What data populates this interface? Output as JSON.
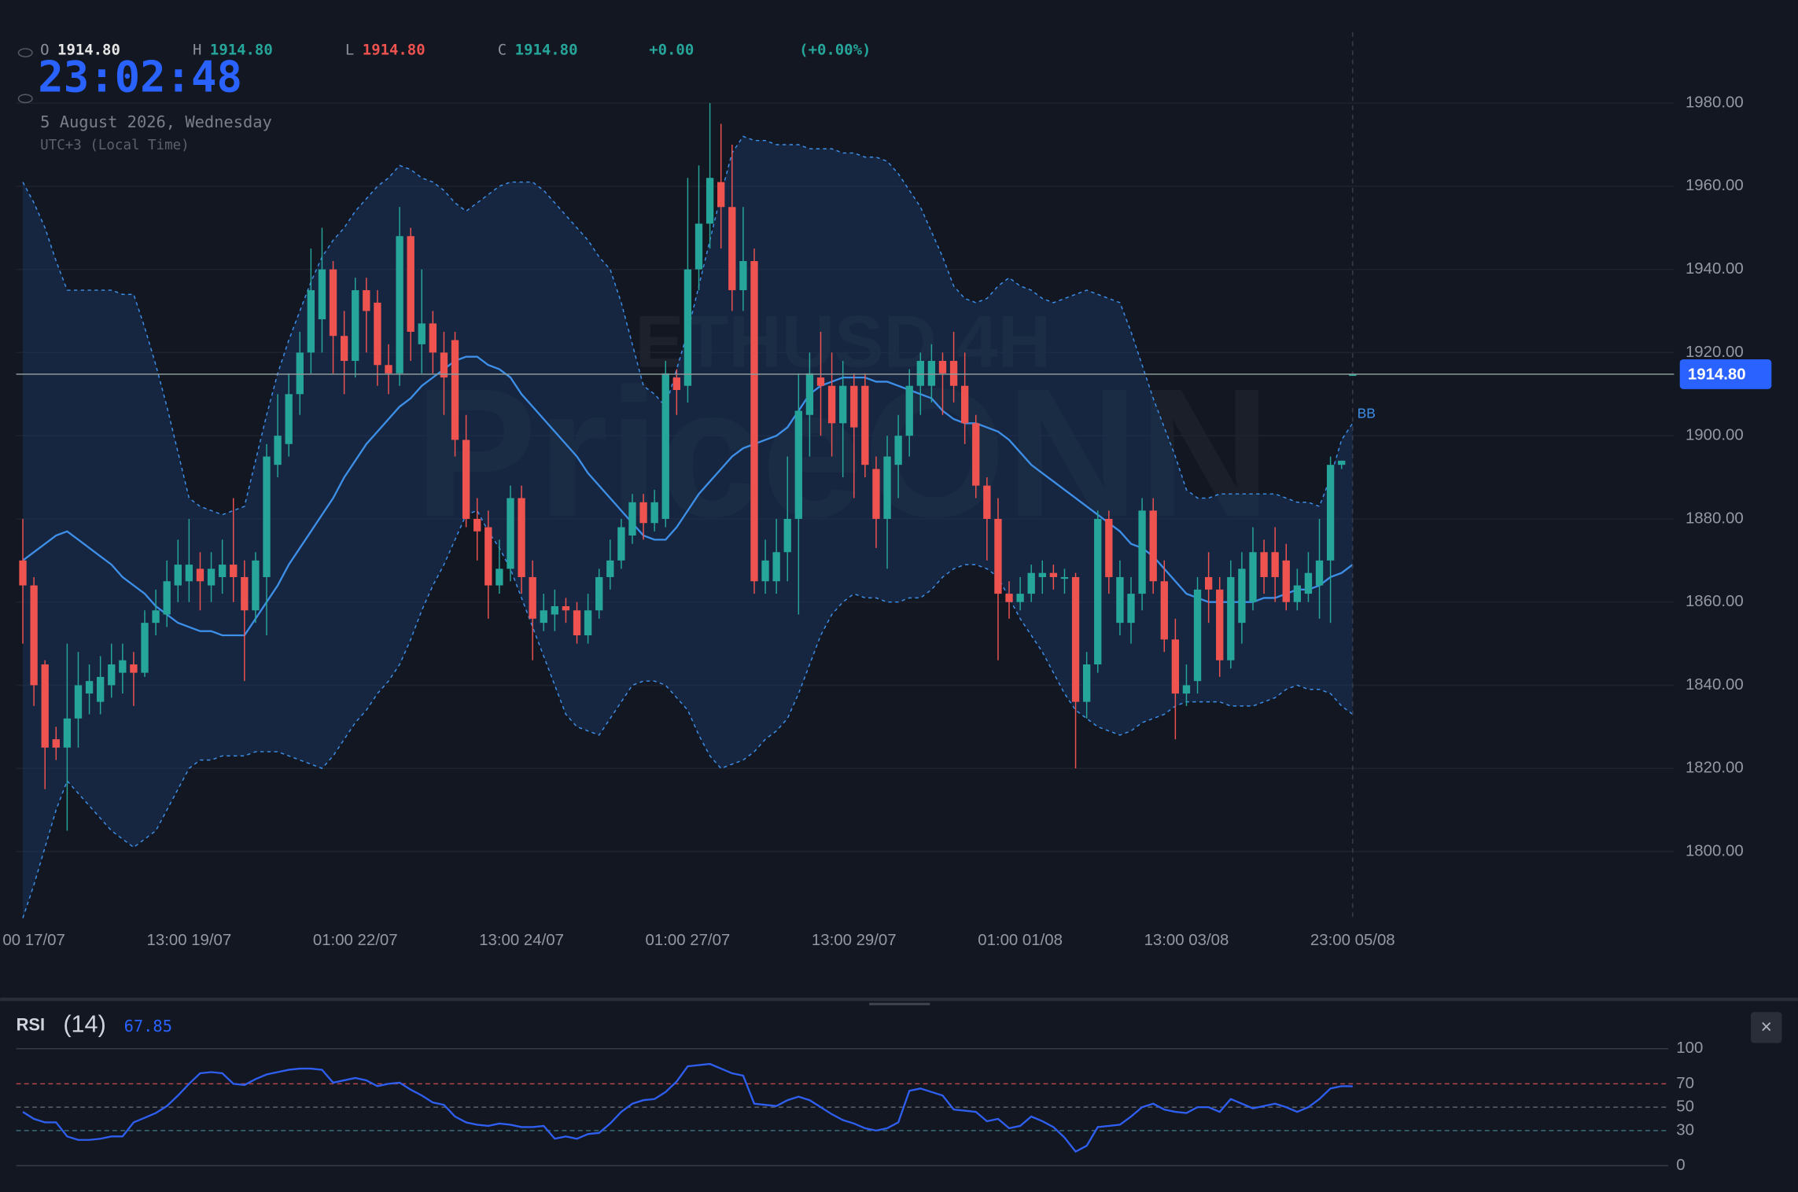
{
  "header": {
    "ohlc": [
      {
        "key": "O",
        "value": "1914.80"
      },
      {
        "key": "H",
        "value": "1914.80"
      },
      {
        "key": "L",
        "value": "1914.80"
      },
      {
        "key": "C",
        "value": "1914.80"
      }
    ],
    "change": "+0.00",
    "change_pct": "(+0.00%)",
    "clock": "23:02:48",
    "date": "5 August 2026, Wednesday",
    "timezone": "UTC+3 (Local Time)"
  },
  "chart_data": [
    {
      "type": "candlestick",
      "watermark": [
        "ETHUSD 4H",
        "PriceONN"
      ],
      "up_color": "#26a69a",
      "down_color": "#ef5350",
      "open": [
        1870,
        1864,
        1845,
        1827,
        1825,
        1832,
        1838,
        1836,
        1840,
        1843,
        1845,
        1843,
        1855,
        1857,
        1864,
        1865,
        1868,
        1864,
        1866,
        1869,
        1866,
        1858,
        1866,
        1893,
        1898,
        1910,
        1920,
        1928,
        1940,
        1924,
        1918,
        1935,
        1932,
        1917,
        1915,
        1948,
        1922,
        1927,
        1920,
        1923,
        1899,
        1880,
        1878,
        1864,
        1868,
        1885,
        1866,
        1855,
        1857,
        1859,
        1858,
        1852,
        1858,
        1866,
        1870,
        1876,
        1884,
        1879,
        1880,
        1914,
        1912,
        1940,
        1951,
        1961,
        1955,
        1935,
        1942,
        1865,
        1865,
        1872,
        1880,
        1905,
        1914,
        1912,
        1903,
        1912,
        1912,
        1892,
        1880,
        1893,
        1900,
        1912,
        1912,
        1918,
        1918,
        1912,
        1903,
        1888,
        1880,
        1862,
        1860,
        1862,
        1866,
        1867,
        1866,
        1866,
        1836,
        1845,
        1880,
        1855,
        1855,
        1862,
        1882,
        1865,
        1851,
        1838,
        1841,
        1866,
        1863,
        1846,
        1855,
        1860,
        1872,
        1872,
        1870,
        1860,
        1862,
        1864,
        1870,
        1893,
        1914.8
      ],
      "high": [
        1880,
        1866,
        1846,
        1830,
        1850,
        1848,
        1845,
        1847,
        1850,
        1850,
        1848,
        1858,
        1863,
        1870,
        1875,
        1880,
        1872,
        1872,
        1875,
        1885,
        1870,
        1872,
        1898,
        1910,
        1915,
        1925,
        1945,
        1950,
        1942,
        1930,
        1938,
        1938,
        1935,
        1922,
        1955,
        1950,
        1940,
        1930,
        1925,
        1925,
        1905,
        1885,
        1882,
        1875,
        1888,
        1888,
        1870,
        1862,
        1863,
        1861,
        1860,
        1862,
        1868,
        1875,
        1880,
        1886,
        1886,
        1887,
        1918,
        1916,
        1962,
        1965,
        1980,
        1975,
        1970,
        1955,
        1945,
        1875,
        1880,
        1895,
        1915,
        1920,
        1925,
        1920,
        1918,
        1915,
        1915,
        1895,
        1900,
        1905,
        1916,
        1920,
        1922,
        1920,
        1925,
        1920,
        1905,
        1890,
        1885,
        1865,
        1866,
        1869,
        1870,
        1869,
        1868,
        1867,
        1848,
        1882,
        1882,
        1870,
        1866,
        1885,
        1885,
        1870,
        1856,
        1845,
        1866,
        1872,
        1866,
        1870,
        1872,
        1878,
        1875,
        1878,
        1874,
        1868,
        1872,
        1880,
        1895,
        1894,
        1914.8
      ],
      "low": [
        1850,
        1835,
        1815,
        1822,
        1805,
        1825,
        1833,
        1833,
        1837,
        1838,
        1835,
        1842,
        1852,
        1854,
        1860,
        1860,
        1858,
        1860,
        1862,
        1860,
        1841,
        1855,
        1852,
        1890,
        1895,
        1905,
        1915,
        1920,
        1915,
        1910,
        1914,
        1920,
        1912,
        1910,
        1912,
        1918,
        1915,
        1915,
        1905,
        1895,
        1878,
        1870,
        1856,
        1862,
        1865,
        1862,
        1846,
        1853,
        1853,
        1855,
        1850,
        1850,
        1856,
        1863,
        1868,
        1874,
        1875,
        1877,
        1878,
        1905,
        1908,
        1935,
        1945,
        1945,
        1930,
        1930,
        1862,
        1862,
        1862,
        1865,
        1857,
        1895,
        1900,
        1895,
        1890,
        1885,
        1890,
        1873,
        1868,
        1885,
        1895,
        1905,
        1908,
        1905,
        1908,
        1898,
        1885,
        1870,
        1846,
        1856,
        1858,
        1860,
        1862,
        1863,
        1862,
        1820,
        1832,
        1843,
        1862,
        1852,
        1850,
        1858,
        1862,
        1848,
        1827,
        1835,
        1838,
        1855,
        1842,
        1844,
        1850,
        1858,
        1862,
        1860,
        1858,
        1858,
        1860,
        1856,
        1855,
        1892,
        1914.8
      ],
      "close": [
        1864,
        1840,
        1825,
        1825,
        1832,
        1840,
        1841,
        1842,
        1845,
        1846,
        1843,
        1855,
        1858,
        1865,
        1869,
        1869,
        1865,
        1868,
        1869,
        1866,
        1858,
        1870,
        1895,
        1900,
        1910,
        1920,
        1935,
        1940,
        1924,
        1918,
        1935,
        1930,
        1917,
        1915,
        1948,
        1925,
        1927,
        1920,
        1914,
        1899,
        1880,
        1877,
        1864,
        1868,
        1885,
        1866,
        1856,
        1858,
        1859,
        1858,
        1852,
        1858,
        1866,
        1870,
        1878,
        1884,
        1879,
        1884,
        1915,
        1911,
        1940,
        1951,
        1962,
        1955,
        1935,
        1942,
        1865,
        1870,
        1872,
        1880,
        1906,
        1915,
        1912,
        1903,
        1912,
        1902,
        1893,
        1880,
        1895,
        1900,
        1912,
        1918,
        1918,
        1915,
        1912,
        1903,
        1888,
        1880,
        1862,
        1860,
        1862,
        1867,
        1867,
        1866,
        1866,
        1836,
        1845,
        1880,
        1866,
        1866,
        1862,
        1882,
        1865,
        1851,
        1838,
        1840,
        1863,
        1863,
        1846,
        1866,
        1868,
        1872,
        1866,
        1866,
        1860,
        1864,
        1867,
        1870,
        1893,
        1894,
        1914.8
      ],
      "bollinger": {
        "name": "BB",
        "color": "#3d8fe8",
        "fill": "#1a3a66",
        "upper": [
          1961,
          1956,
          1950,
          1942,
          1935,
          1935,
          1935,
          1935,
          1935,
          1934,
          1934,
          1926,
          1917,
          1907,
          1896,
          1885,
          1883,
          1882,
          1881,
          1882,
          1883,
          1894,
          1905,
          1915,
          1923,
          1930,
          1937,
          1943,
          1947,
          1950,
          1954,
          1957,
          1960,
          1962,
          1965,
          1964,
          1962,
          1961,
          1959,
          1956,
          1954,
          1956,
          1958,
          1960,
          1961,
          1961,
          1961,
          1959,
          1956,
          1953,
          1950,
          1947,
          1943,
          1940,
          1932,
          1922,
          1912,
          1910,
          1907,
          1916,
          1925,
          1936,
          1947,
          1958,
          1968,
          1972,
          1971,
          1971,
          1970,
          1970,
          1970,
          1969,
          1969,
          1969,
          1968,
          1968,
          1967,
          1967,
          1966,
          1963,
          1959,
          1955,
          1949,
          1943,
          1936,
          1933,
          1932,
          1933,
          1936,
          1938,
          1936,
          1935,
          1933,
          1932,
          1933,
          1934,
          1935,
          1934,
          1933,
          1932,
          1925,
          1917,
          1909,
          1902,
          1895,
          1887,
          1885,
          1885,
          1886,
          1886,
          1886,
          1886,
          1886,
          1886,
          1885,
          1884,
          1884,
          1883,
          1890,
          1899,
          1903
        ],
        "middle": [
          1870,
          1872,
          1874,
          1876,
          1877,
          1875,
          1873,
          1871,
          1869,
          1866,
          1864,
          1862,
          1859,
          1857,
          1855,
          1854,
          1853,
          1853,
          1852,
          1852,
          1852,
          1856,
          1860,
          1864,
          1869,
          1873,
          1877,
          1881,
          1885,
          1890,
          1894,
          1898,
          1901,
          1904,
          1907,
          1909,
          1912,
          1914,
          1916,
          1918,
          1919,
          1919,
          1917,
          1916,
          1914,
          1910,
          1907,
          1904,
          1901,
          1898,
          1895,
          1891,
          1888,
          1885,
          1882,
          1879,
          1876,
          1875,
          1875,
          1878,
          1882,
          1886,
          1889,
          1892,
          1895,
          1897,
          1898,
          1899,
          1900,
          1902,
          1906,
          1910,
          1912,
          1913,
          1914,
          1914,
          1914,
          1913,
          1913,
          1912,
          1911,
          1910,
          1909,
          1906,
          1904,
          1903,
          1903,
          1902,
          1901,
          1899,
          1896,
          1893,
          1891,
          1889,
          1887,
          1885,
          1883,
          1881,
          1879,
          1877,
          1874,
          1873,
          1871,
          1868,
          1865,
          1862,
          1861,
          1860,
          1860,
          1860,
          1860,
          1860,
          1861,
          1861,
          1862,
          1863,
          1863,
          1864,
          1866,
          1867,
          1869
        ],
        "lower": [
          1784,
          1792,
          1801,
          1810,
          1817,
          1814,
          1811,
          1808,
          1805,
          1803,
          1801,
          1803,
          1805,
          1810,
          1815,
          1820,
          1822,
          1822,
          1823,
          1823,
          1823,
          1824,
          1824,
          1824,
          1823,
          1822,
          1821,
          1820,
          1823,
          1827,
          1831,
          1834,
          1838,
          1841,
          1845,
          1851,
          1858,
          1864,
          1869,
          1875,
          1881,
          1882,
          1877,
          1873,
          1868,
          1861,
          1854,
          1847,
          1840,
          1833,
          1830,
          1829,
          1828,
          1832,
          1836,
          1840,
          1841,
          1841,
          1840,
          1837,
          1834,
          1828,
          1823,
          1820,
          1821,
          1822,
          1824,
          1827,
          1829,
          1832,
          1838,
          1845,
          1852,
          1857,
          1860,
          1862,
          1861,
          1861,
          1860,
          1860,
          1861,
          1861,
          1863,
          1866,
          1868,
          1869,
          1869,
          1868,
          1866,
          1861,
          1856,
          1852,
          1848,
          1843,
          1838,
          1834,
          1832,
          1830,
          1829,
          1828,
          1829,
          1831,
          1832,
          1833,
          1835,
          1836,
          1836,
          1836,
          1836,
          1835,
          1835,
          1835,
          1836,
          1837,
          1839,
          1840,
          1839,
          1839,
          1838,
          1835,
          1833
        ]
      },
      "xlim": [
        -0.6,
        149
      ],
      "xticks": [
        {
          "value": 1,
          "label": "00 17/07"
        },
        {
          "value": 15,
          "label": "13:00 19/07"
        },
        {
          "value": 30,
          "label": "01:00 22/07"
        },
        {
          "value": 45,
          "label": "13:00 24/07"
        },
        {
          "value": 60,
          "label": "01:00 27/07"
        },
        {
          "value": 75,
          "label": "13:00 29/07"
        },
        {
          "value": 90,
          "label": "01:00 01/08"
        },
        {
          "value": 105,
          "label": "13:00 03/08"
        },
        {
          "value": 120,
          "label": "23:00 05/08"
        }
      ],
      "ylim": [
        1784,
        1999
      ],
      "yticks": [
        {
          "value": 1800,
          "label": "1800.00"
        },
        {
          "value": 1820,
          "label": "1820.00"
        },
        {
          "value": 1840,
          "label": "1840.00"
        },
        {
          "value": 1860,
          "label": "1860.00"
        },
        {
          "value": 1880,
          "label": "1880.00"
        },
        {
          "value": 1900,
          "label": "1900.00"
        },
        {
          "value": 1920,
          "label": "1920.00"
        },
        {
          "value": 1940,
          "label": "1940.00"
        },
        {
          "value": 1960,
          "label": "1960.00"
        },
        {
          "value": 1980,
          "label": "1980.00"
        }
      ],
      "grid": true,
      "current_price": {
        "value": 1914.8,
        "label": "1914.80",
        "color": "#2962ff"
      },
      "crosshair_x": 120
    },
    {
      "type": "line",
      "title": "RSI",
      "subtitle": "(14)",
      "value_label": "67.85",
      "series": [
        {
          "color": "#2f5ff0",
          "values": [
            46,
            40,
            37,
            37,
            25,
            22,
            22,
            23,
            25,
            25,
            37,
            41,
            45,
            51,
            60,
            70,
            79,
            80,
            79,
            70,
            69,
            74,
            78,
            80,
            82,
            83,
            83,
            82,
            71,
            73,
            75,
            73,
            68,
            70,
            71,
            65,
            60,
            54,
            52,
            42,
            37,
            35,
            34,
            36,
            35,
            33,
            33,
            34,
            23,
            25,
            23,
            27,
            28,
            36,
            46,
            53,
            56,
            57,
            63,
            72,
            85,
            86,
            87,
            83,
            79,
            77,
            53,
            52,
            51,
            56,
            59,
            56,
            50,
            44,
            39,
            36,
            32,
            30,
            32,
            37,
            64,
            66,
            63,
            60,
            48,
            47,
            46,
            38,
            40,
            32,
            34,
            42,
            38,
            33,
            24,
            12,
            17,
            33,
            34,
            35,
            42,
            50,
            53,
            48,
            46,
            45,
            50,
            50,
            46,
            57,
            53,
            49,
            51,
            53,
            50,
            46,
            50,
            57,
            66,
            68,
            67.85
          ]
        }
      ],
      "xlim": [
        -0.6,
        149
      ],
      "ylim": [
        0,
        100
      ],
      "yticks": [
        0,
        30,
        50,
        70,
        100
      ],
      "ytick_colors": [
        "#363a45",
        "#3c6e7c",
        "#5d616b",
        "#b3474b",
        "#363a45"
      ],
      "ytick_dashed": [
        false,
        true,
        true,
        true,
        false
      ],
      "close_button": "×"
    }
  ]
}
